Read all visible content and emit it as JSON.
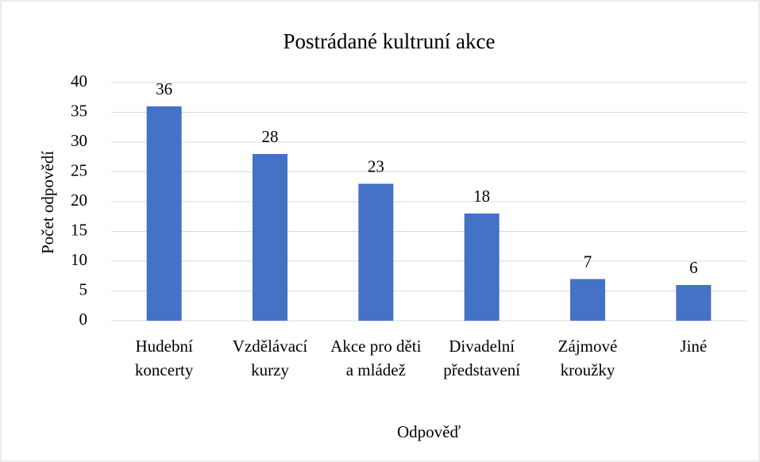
{
  "chart_data": {
    "type": "bar",
    "title": "Postrádané kultruní akce",
    "x_label": "Odpověď",
    "y_label": "Počet odpovědí",
    "categories": [
      "Hudební koncerty",
      "Vzdělávací kurzy",
      "Akce pro děti a mládež",
      "Divadelní představení",
      "Zájmové kroužky",
      "Jiné"
    ],
    "values": [
      36,
      28,
      23,
      18,
      7,
      6
    ],
    "color": "#4472c4",
    "ylim": [
      0,
      40
    ],
    "yticks": [
      0,
      5,
      10,
      15,
      20,
      25,
      30,
      35,
      40
    ],
    "grid": true
  }
}
